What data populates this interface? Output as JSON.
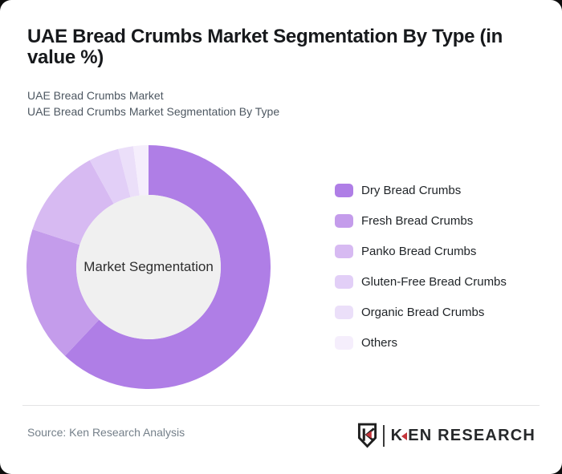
{
  "page_background": "#0d0d0d",
  "card_background": "#ffffff",
  "header": {
    "title": "UAE Bread Crumbs Market Segmentation By Type (in value %)",
    "title_lines": [
      "UAE Bread Crumbs Market Segmentation By Type (in",
      "value %)"
    ],
    "subtitle_lines": [
      "UAE Bread Crumbs Market",
      "UAE Bread Crumbs Market Segmentation By Type"
    ]
  },
  "chart_data": {
    "type": "pie",
    "donut": true,
    "title": "UAE Bread Crumbs Market Segmentation By Type (in value %)",
    "center_label": "Market Segmentation",
    "categories": [
      "Dry Bread Crumbs",
      "Fresh Bread Crumbs",
      "Panko Bread Crumbs",
      "Gluten-Free Bread Crumbs",
      "Organic Bread Crumbs",
      "Others"
    ],
    "values": [
      62,
      18,
      12,
      4,
      2,
      2
    ],
    "unit": "%",
    "colors": [
      "#af7ee6",
      "#c49ceb",
      "#d7baf2",
      "#e2cff7",
      "#ebdff9",
      "#f5eefc"
    ],
    "inner_circle_color": "#f0f0f0",
    "start_angle_deg": 0,
    "direction": "clockwise",
    "legend_position": "right",
    "inner_radius_ratio": 0.59
  },
  "footer": {
    "source": "Source: Ken Research Analysis",
    "logo": {
      "monogram": "K",
      "wordmark_k": "K",
      "wordmark_rest": "EN RESEARCH",
      "accent_color": "#c4353b",
      "text_color": "#26282a"
    }
  }
}
